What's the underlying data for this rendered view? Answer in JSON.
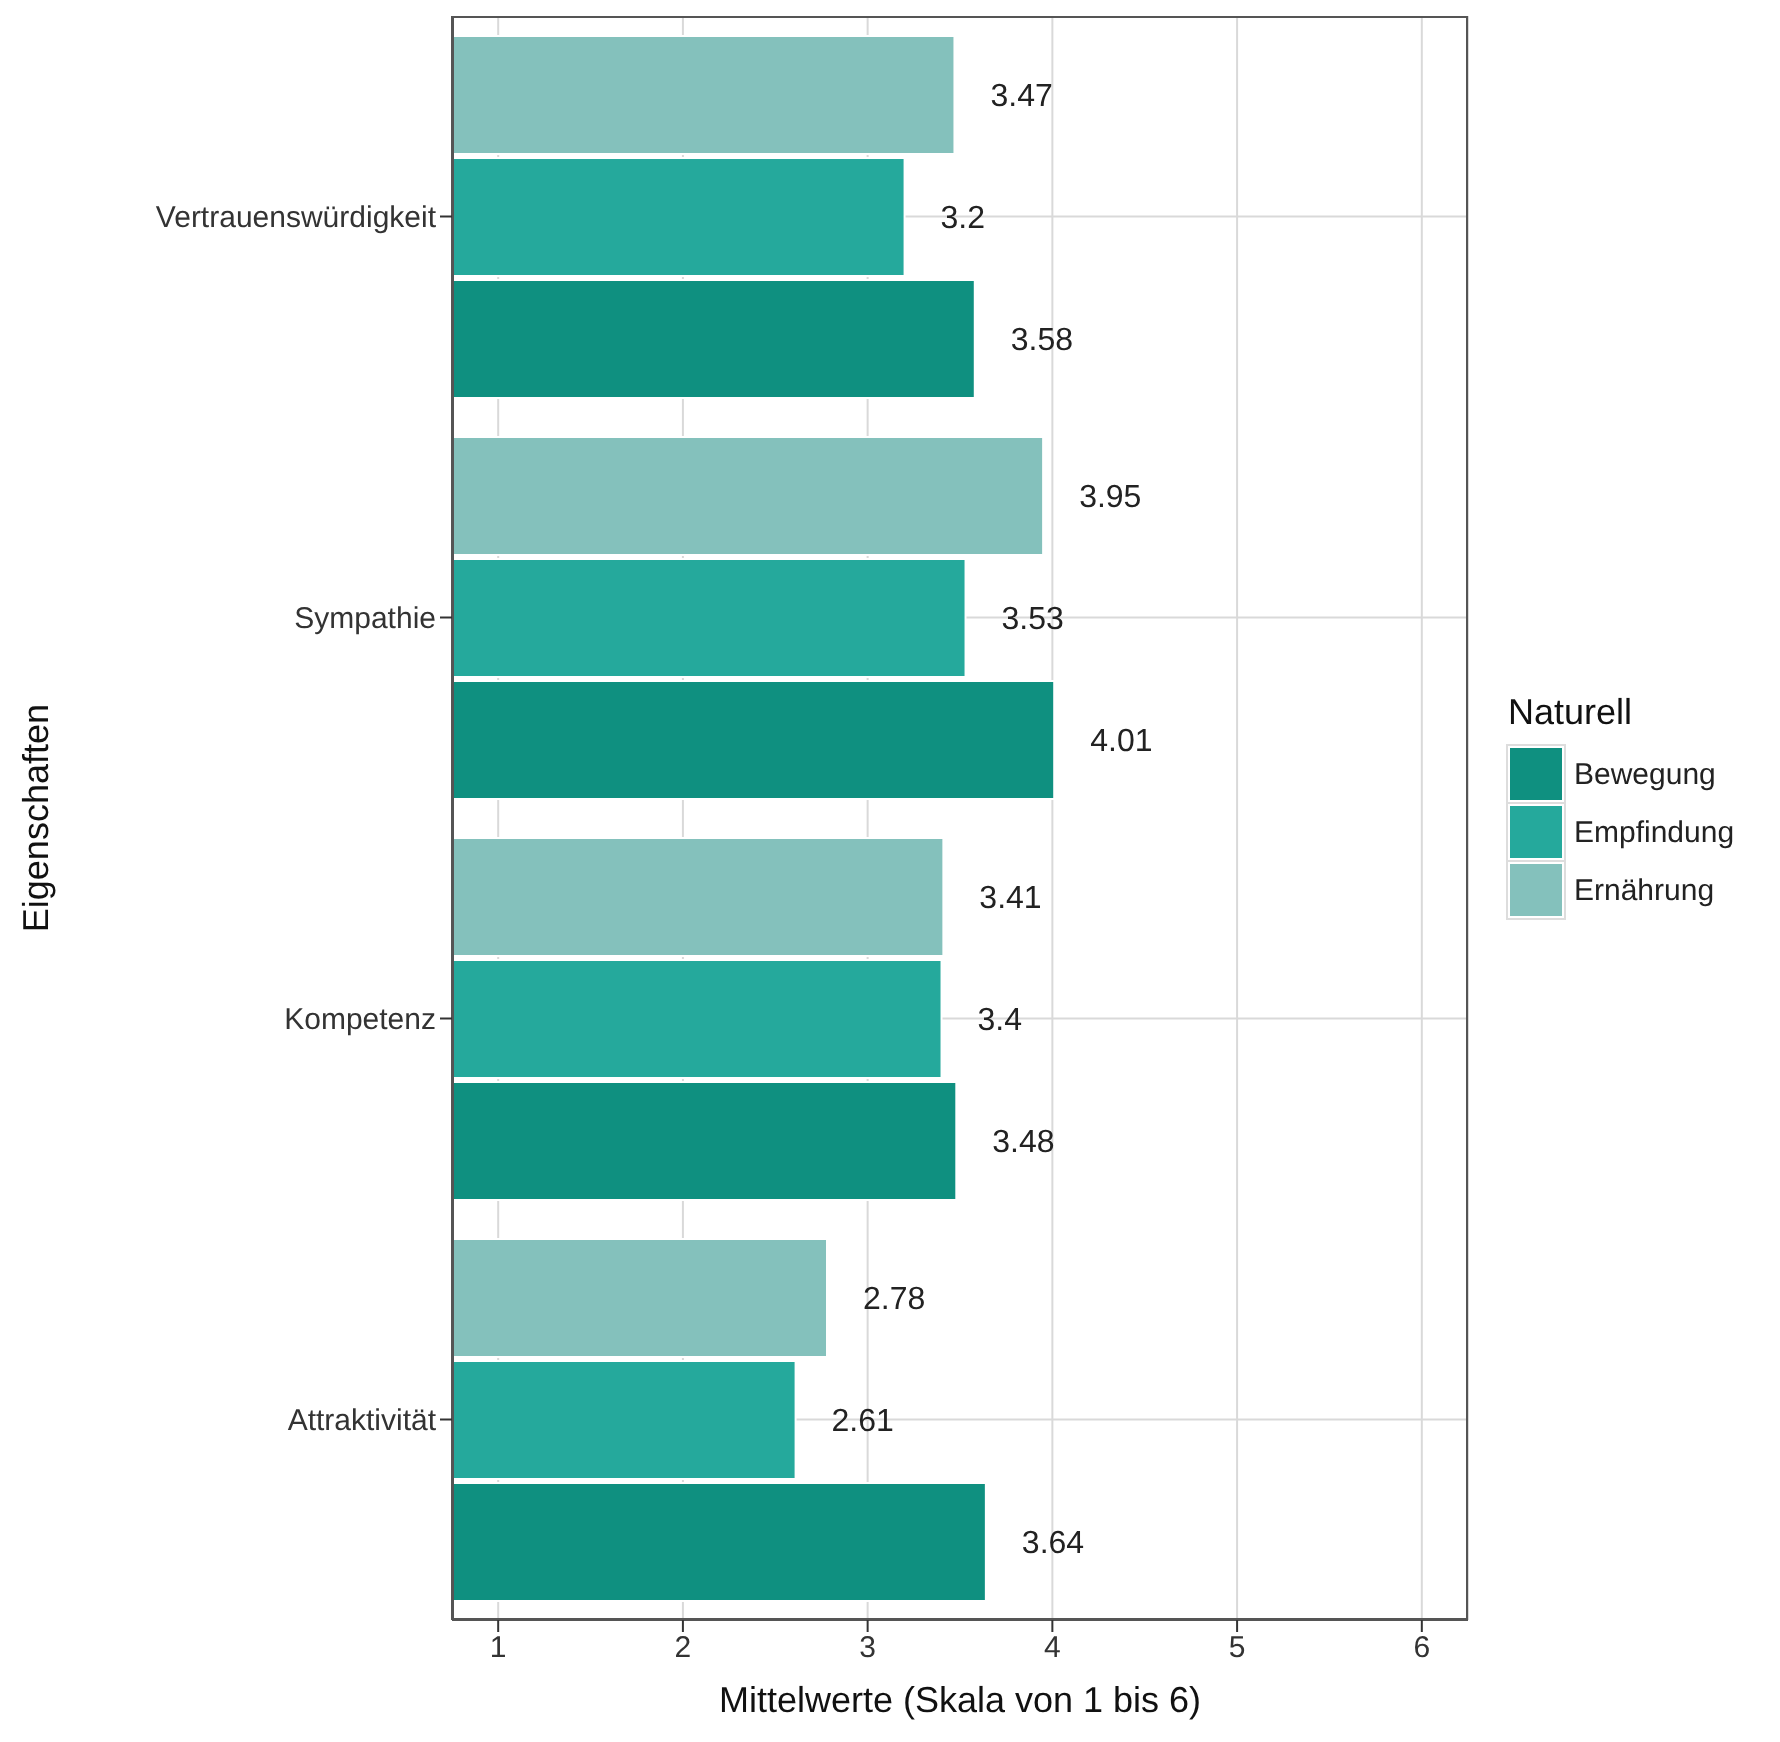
{
  "chart_data": {
    "type": "bar",
    "orientation": "horizontal",
    "xlabel": "Mittelwerte (Skala von 1 bis 6)",
    "ylabel": "Eigenschaften",
    "legend_title": "Naturell",
    "categories": [
      "Vertrauenswürdigkeit",
      "Sympathie",
      "Kompetenz",
      "Attraktivität"
    ],
    "series": [
      {
        "name": "Bewegung",
        "color": "#0f9080",
        "values": [
          3.58,
          4.01,
          3.48,
          3.64
        ]
      },
      {
        "name": "Empfindung",
        "color": "#25a99c",
        "values": [
          3.2,
          3.53,
          3.4,
          2.61
        ]
      },
      {
        "name": "Ernährung",
        "color": "#84c1bc",
        "values": [
          3.47,
          3.95,
          3.41,
          2.78
        ]
      }
    ],
    "xlim": [
      0.75,
      6.25
    ],
    "xticks": [
      1,
      2,
      3,
      4,
      5,
      6
    ],
    "grid": true,
    "legend": "right",
    "data_labels": true
  }
}
